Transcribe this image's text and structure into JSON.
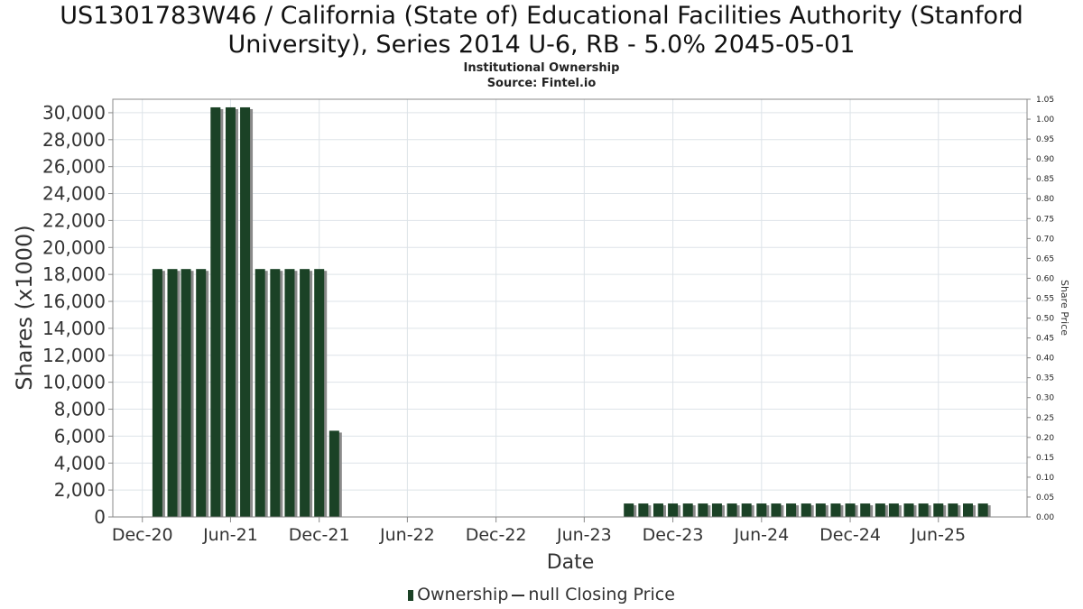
{
  "header": {
    "title_line1": "US1301783W46 / California (State of) Educational Facilities Authority (Stanford",
    "title_line2": "University), Series 2014 U-6, RB - 5.0% 2045-05-01",
    "subtitle1": "Institutional Ownership",
    "subtitle2": "Source: Fintel.io"
  },
  "legend": {
    "ownership_label": "Ownership",
    "price_label": "null Closing Price"
  },
  "colors": {
    "bar": "#1b4226",
    "bar_shadow": "#8a8a8a",
    "grid": "#dde3e8",
    "axis": "#888888"
  },
  "chart_data": {
    "type": "bar",
    "title": "US1301783W46 / California (State of) Educational Facilities Authority (Stanford University), Series 2014 U-6, RB - 5.0% 2045-05-01",
    "xlabel": "Date",
    "ylabel": "Shares (x1000)",
    "ylabel_right": "Share Price",
    "ylim": [
      0,
      31000
    ],
    "ylim_right": [
      0,
      1.05
    ],
    "y_ticks": [
      "0",
      "2,000",
      "4,000",
      "6,000",
      "8,000",
      "10,000",
      "12,000",
      "14,000",
      "16,000",
      "18,000",
      "20,000",
      "22,000",
      "24,000",
      "26,000",
      "28,000",
      "30,000"
    ],
    "y_tick_values": [
      0,
      2000,
      4000,
      6000,
      8000,
      10000,
      12000,
      14000,
      16000,
      18000,
      20000,
      22000,
      24000,
      26000,
      28000,
      30000
    ],
    "y_right_ticks": [
      "0.00",
      "0.05",
      "0.10",
      "0.15",
      "0.20",
      "0.25",
      "0.30",
      "0.35",
      "0.40",
      "0.45",
      "0.50",
      "0.55",
      "0.60",
      "0.65",
      "0.70",
      "0.75",
      "0.80",
      "0.85",
      "0.90",
      "0.95",
      "1.00",
      "1.05"
    ],
    "y_right_tick_values": [
      0,
      0.05,
      0.1,
      0.15,
      0.2,
      0.25,
      0.3,
      0.35,
      0.4,
      0.45,
      0.5,
      0.55,
      0.6,
      0.65,
      0.7,
      0.75,
      0.8,
      0.85,
      0.9,
      0.95,
      1.0,
      1.05
    ],
    "x_range": [
      "2020-10-01",
      "2025-12-01"
    ],
    "x_ticks": [
      {
        "label": "Dec-20",
        "date": "2020-12-01"
      },
      {
        "label": "Jun-21",
        "date": "2021-06-01"
      },
      {
        "label": "Dec-21",
        "date": "2021-12-01"
      },
      {
        "label": "Jun-22",
        "date": "2022-06-01"
      },
      {
        "label": "Dec-22",
        "date": "2022-12-01"
      },
      {
        "label": "Jun-23",
        "date": "2023-06-01"
      },
      {
        "label": "Dec-23",
        "date": "2023-12-01"
      },
      {
        "label": "Jun-24",
        "date": "2024-06-01"
      },
      {
        "label": "Dec-24",
        "date": "2024-12-01"
      },
      {
        "label": "Jun-25",
        "date": "2025-06-01"
      }
    ],
    "series": [
      {
        "name": "Ownership",
        "dates": [
          "2021-01-01",
          "2021-02-01",
          "2021-03-01",
          "2021-04-01",
          "2021-05-01",
          "2021-06-01",
          "2021-07-01",
          "2021-08-01",
          "2021-09-01",
          "2021-10-01",
          "2021-11-01",
          "2021-12-01",
          "2022-01-01",
          "2023-09-01",
          "2023-10-01",
          "2023-11-01",
          "2023-12-01",
          "2024-01-01",
          "2024-02-01",
          "2024-03-01",
          "2024-04-01",
          "2024-05-01",
          "2024-06-01",
          "2024-07-01",
          "2024-08-01",
          "2024-09-01",
          "2024-10-01",
          "2024-11-01",
          "2024-12-01",
          "2025-01-01",
          "2025-02-01",
          "2025-03-01",
          "2025-04-01",
          "2025-05-01",
          "2025-06-01",
          "2025-07-01",
          "2025-08-01",
          "2025-09-01"
        ],
        "values": [
          18400,
          18400,
          18400,
          18400,
          30400,
          30400,
          30400,
          18400,
          18400,
          18400,
          18400,
          18400,
          6400,
          1000,
          1000,
          1000,
          1000,
          1000,
          1000,
          1000,
          1000,
          1000,
          1000,
          1000,
          1000,
          1000,
          1000,
          1000,
          1000,
          1000,
          1000,
          1000,
          1000,
          1000,
          1000,
          1000,
          1000,
          1000
        ]
      },
      {
        "name": "null Closing Price",
        "values": []
      }
    ]
  }
}
